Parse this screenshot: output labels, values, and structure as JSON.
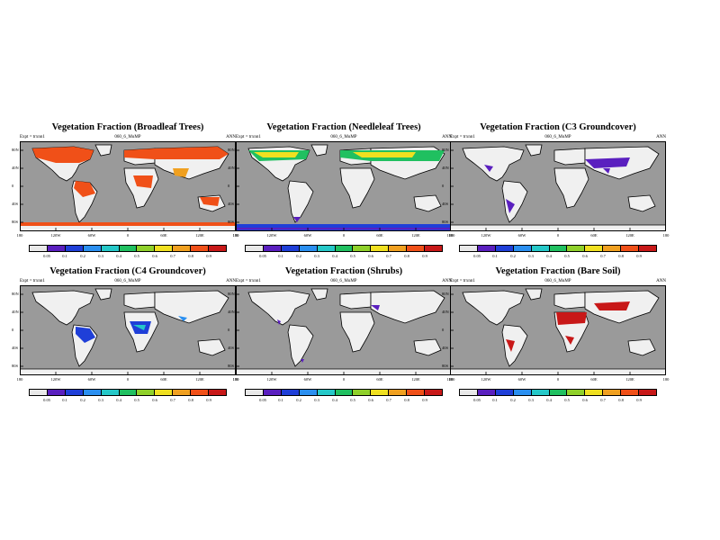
{
  "figure": {
    "expt": "Expt = trxnn1",
    "case": "060_6_MuMP",
    "period": "ANN",
    "lon_labels": [
      "180",
      "120W",
      "60W",
      "0",
      "60E",
      "120E",
      "180"
    ],
    "lat_labels": [
      "80N",
      "40N",
      "0",
      "40S",
      "80S"
    ],
    "colorbar_labels": [
      "0.05",
      "0.1",
      "0.2",
      "0.3",
      "0.4",
      "0.5",
      "0.6",
      "0.7",
      "0.8",
      "0.9"
    ],
    "colorbar_colors": [
      "#e8e8e8",
      "#5a1fbf",
      "#1f3fd8",
      "#2a8ff0",
      "#25c8c8",
      "#20c060",
      "#8fd02a",
      "#f0e020",
      "#f0a020",
      "#f05018",
      "#c81818"
    ],
    "ocean_color": "#9a9a9a",
    "land_color": "#f0f0f0"
  },
  "panels": [
    {
      "title": "Vegetation Fraction (Broadleaf Trees)"
    },
    {
      "title": "Vegetation Fraction (Needleleaf Trees)"
    },
    {
      "title": "Vegetation Fraction (C3 Groundcover)"
    },
    {
      "title": "Vegetation Fraction (C4 Groundcover)"
    },
    {
      "title": "Vegetation Fraction (Shrubs)"
    },
    {
      "title": "Vegetation Fraction (Bare Soil)"
    }
  ]
}
